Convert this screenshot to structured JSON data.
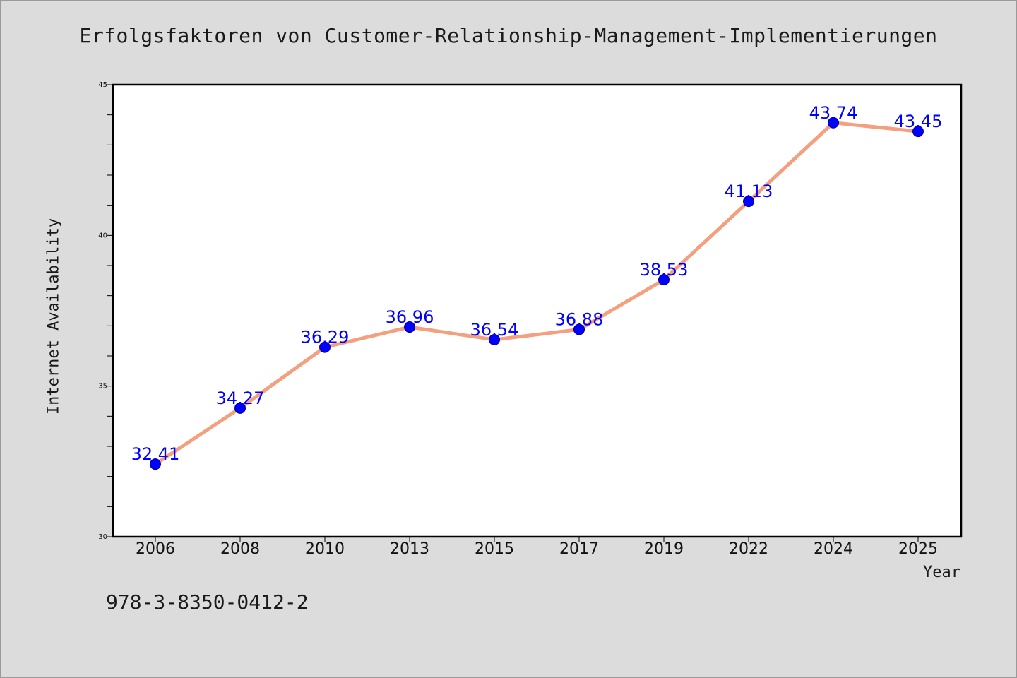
{
  "chart_data": {
    "type": "line",
    "title": "Erfolgsfaktoren von Customer-Relationship-Management-Implementierungen",
    "xlabel": "Year",
    "ylabel": "Internet Availability",
    "categories": [
      "2006",
      "2008",
      "2010",
      "2013",
      "2015",
      "2017",
      "2019",
      "2022",
      "2024",
      "2025"
    ],
    "series": [
      {
        "values": [
          32.41,
          34.27,
          36.29,
          36.96,
          36.54,
          36.88,
          38.53,
          41.13,
          43.74,
          43.45
        ],
        "labels": [
          "32.41",
          "34.27",
          "36.29",
          "36.96",
          "36.54",
          "36.88",
          "38.53",
          "41.13",
          "43.74",
          "43.45"
        ],
        "line_color": "#f4a07f",
        "marker_color": "#0000ff"
      }
    ],
    "ylim": [
      30,
      45
    ],
    "yticks_major": [
      30,
      35,
      40,
      45
    ],
    "ytick_minor_step": 1,
    "grid": false,
    "legend": "none"
  },
  "footer": {
    "isbn": "978-3-8350-0412-2"
  }
}
